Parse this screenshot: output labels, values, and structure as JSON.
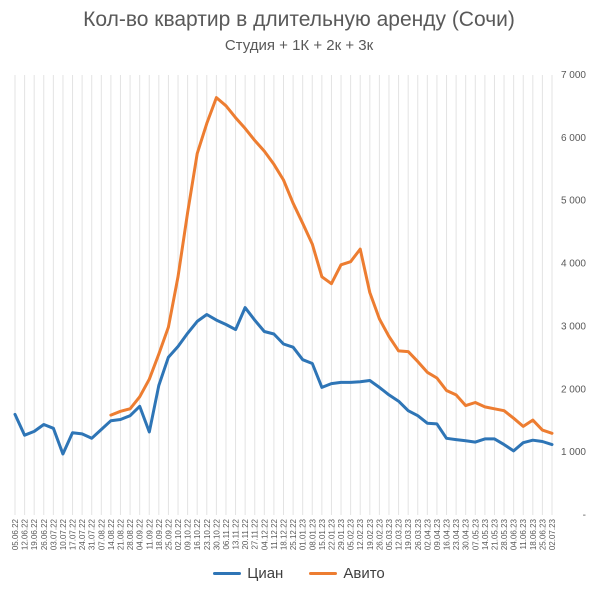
{
  "chart_data": {
    "type": "line",
    "title": "Кол-во квартир в длительную аренду (Сочи)",
    "subtitle": "Студия + 1К + 2к + 3к",
    "ylim": [
      0,
      7000
    ],
    "y_ticks": [
      {
        "value": 0,
        "label": "-"
      },
      {
        "value": 1000,
        "label": "1 000"
      },
      {
        "value": 2000,
        "label": "2 000"
      },
      {
        "value": 3000,
        "label": "3 000"
      },
      {
        "value": 4000,
        "label": "4 000"
      },
      {
        "value": 5000,
        "label": "5 000"
      },
      {
        "value": 6000,
        "label": "6 000"
      },
      {
        "value": 7000,
        "label": "7 000"
      }
    ],
    "grid": "vertical",
    "legend_position": "bottom",
    "categories": [
      "05.06.22",
      "12.06.22",
      "19.06.22",
      "26.06.22",
      "03.07.22",
      "10.07.22",
      "17.07.22",
      "24.07.22",
      "31.07.22",
      "07.08.22",
      "14.08.22",
      "21.08.22",
      "28.08.22",
      "04.09.22",
      "11.09.22",
      "18.09.22",
      "25.09.22",
      "02.10.22",
      "09.10.22",
      "16.10.22",
      "23.10.22",
      "30.10.22",
      "06.11.22",
      "13.11.22",
      "20.11.22",
      "27.11.22",
      "04.12.22",
      "11.12.22",
      "18.12.22",
      "25.12.22",
      "01.01.23",
      "08.01.23",
      "15.01.23",
      "22.01.23",
      "29.01.23",
      "05.02.23",
      "12.02.23",
      "19.02.23",
      "26.02.23",
      "05.03.23",
      "12.03.23",
      "19.03.23",
      "26.03.23",
      "02.04.23",
      "09.04.23",
      "16.04.23",
      "23.04.23",
      "30.04.23",
      "07.05.23",
      "14.05.23",
      "21.05.23",
      "28.05.23",
      "04.06.23",
      "11.06.23",
      "18.06.23",
      "25.06.23",
      "02.07.23"
    ],
    "series": [
      {
        "name": "Циан",
        "color": "#2E75B6",
        "values": [
          1600,
          1270,
          1330,
          1440,
          1380,
          970,
          1310,
          1290,
          1220,
          1360,
          1500,
          1520,
          1580,
          1730,
          1320,
          2060,
          2510,
          2680,
          2890,
          3080,
          3190,
          3100,
          3030,
          2950,
          3300,
          3100,
          2920,
          2880,
          2720,
          2670,
          2470,
          2410,
          2030,
          2090,
          2110,
          2110,
          2120,
          2140,
          2030,
          1910,
          1810,
          1660,
          1580,
          1460,
          1450,
          1220,
          1200,
          1180,
          1160,
          1210,
          1210,
          1120,
          1020,
          1150,
          1190,
          1170,
          1120
        ]
      },
      {
        "name": "Авито",
        "color": "#ED7D31",
        "values": [
          null,
          null,
          null,
          null,
          null,
          null,
          null,
          null,
          null,
          null,
          1590,
          1650,
          1690,
          1880,
          2160,
          2560,
          2990,
          3790,
          4810,
          5750,
          6230,
          6640,
          6510,
          6320,
          6150,
          5960,
          5790,
          5580,
          5330,
          4960,
          4640,
          4310,
          3790,
          3680,
          3980,
          4030,
          4230,
          3540,
          3120,
          2840,
          2610,
          2600,
          2440,
          2270,
          2180,
          1980,
          1910,
          1740,
          1790,
          1720,
          1690,
          1660,
          1540,
          1410,
          1510,
          1350,
          1300
        ]
      }
    ]
  }
}
